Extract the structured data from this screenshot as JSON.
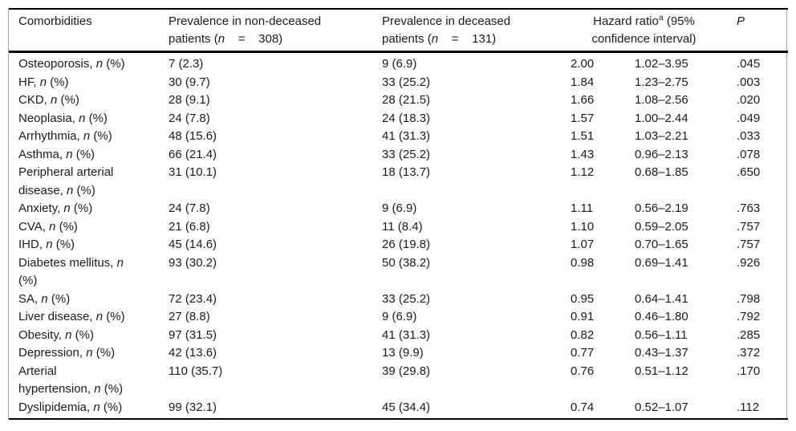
{
  "table": {
    "columns": {
      "comorbidities": "Comorbidities",
      "prev_non_deceased": {
        "pre": "Prevalence in non-deceased patients (",
        "n": "n",
        "post": "    =    308)"
      },
      "prev_deceased": {
        "pre": "Prevalence in deceased patients (",
        "n": "n",
        "post": "    =    131)"
      },
      "hazard_ratio": {
        "pre": "Hazard ratio",
        "sup": "a",
        "post": " (95% confidence interval)"
      },
      "p": "P"
    },
    "label_suffix": {
      "comma": ", ",
      "n": "n",
      "pct": " (%)"
    },
    "rows": [
      {
        "name": "Osteoporosis",
        "values": [
          "7 (2.3)",
          "9 (6.9)",
          "2.00",
          "1.02–3.95",
          ".045"
        ]
      },
      {
        "name": "HF",
        "values": [
          "30 (9.7)",
          "33 (25.2)",
          "1.84",
          "1.23–2.75",
          ".003"
        ]
      },
      {
        "name": "CKD",
        "values": [
          "28 (9.1)",
          "28 (21.5)",
          "1.66",
          "1.08–2.56",
          ".020"
        ]
      },
      {
        "name": "Neoplasia",
        "values": [
          "24 (7.8)",
          "24 (18.3)",
          "1.57",
          "1.00–2.44",
          ".049"
        ]
      },
      {
        "name": "Arrhythmia",
        "values": [
          "48 (15.6)",
          "41 (31.3)",
          "1.51",
          "1.03–2.21",
          ".033"
        ]
      },
      {
        "name": "Asthma",
        "values": [
          "66 (21.4)",
          "33 (25.2)",
          "1.43",
          "0.96–2.13",
          ".078"
        ]
      },
      {
        "name": "Peripheral arterial disease",
        "values": [
          "31 (10.1)",
          "18 (13.7)",
          "1.12",
          "0.68–1.85",
          ".650"
        ]
      },
      {
        "name": "Anxiety",
        "values": [
          "24 (7.8)",
          "9 (6.9)",
          "1.11",
          "0.56–2.19",
          ".763"
        ]
      },
      {
        "name": "CVA",
        "values": [
          "21 (6.8)",
          "11 (8.4)",
          "1.10",
          "0.59–2.05",
          ".757"
        ]
      },
      {
        "name": "IHD",
        "values": [
          "45 (14.6)",
          "26 (19.8)",
          "1.07",
          "0.70–1.65",
          ".757"
        ]
      },
      {
        "name": "Diabetes mellitus",
        "values": [
          "93 (30.2)",
          "50 (38.2)",
          "0.98",
          "0.69–1.41",
          ".926"
        ]
      },
      {
        "name": "SA",
        "values": [
          "72 (23.4)",
          "33 (25.2)",
          "0.95",
          "0.64–1.41",
          ".798"
        ]
      },
      {
        "name": "Liver disease",
        "values": [
          "27 (8.8)",
          "9 (6.9)",
          "0.91",
          "0.46–1.80",
          ".792"
        ]
      },
      {
        "name": "Obesity",
        "values": [
          "97 (31.5)",
          "41 (31.3)",
          "0.82",
          "0.56–1.11",
          ".285"
        ]
      },
      {
        "name": "Depression",
        "values": [
          "42 (13.6)",
          "13 (9.9)",
          "0.77",
          "0.43–1.37",
          ".372"
        ]
      },
      {
        "name": "Arterial hypertension",
        "values": [
          "110 (35.7)",
          "39 (29.8)",
          "0.76",
          "0.51–1.12",
          ".170"
        ]
      },
      {
        "name": "Dyslipidemia",
        "values": [
          "99 (32.1)",
          "45 (34.4)",
          "0.74",
          "0.52–1.07",
          ".112"
        ]
      }
    ],
    "colors": {
      "rule_black": "#000000",
      "frame_gray": "#a8a8a8",
      "text": "#1b1b1b",
      "background": "#ffffff"
    }
  }
}
